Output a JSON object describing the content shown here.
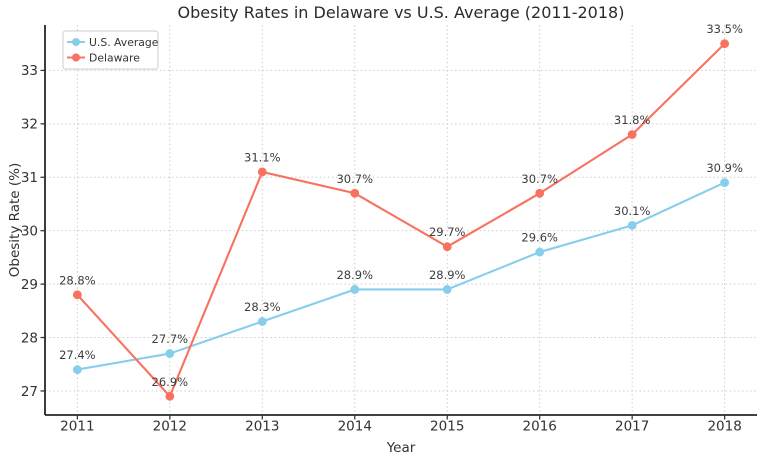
{
  "chart_data": {
    "type": "line",
    "title": "Obesity Rates in Delaware vs U.S. Average (2011-2018)",
    "xlabel": "Year",
    "ylabel": "Obesity Rate (%)",
    "categories": [
      2011,
      2012,
      2013,
      2014,
      2015,
      2016,
      2017,
      2018
    ],
    "series": [
      {
        "name": "U.S. Average",
        "color": "#87CEEB",
        "marker": "circle",
        "values": [
          27.4,
          27.7,
          28.3,
          28.9,
          28.9,
          29.6,
          30.1,
          30.9
        ],
        "point_labels": [
          "27.4%",
          "27.7%",
          "28.3%",
          "28.9%",
          "28.9%",
          "29.6%",
          "30.1%",
          "30.9%"
        ]
      },
      {
        "name": "Delaware",
        "color": "#F9715F",
        "marker": "circle",
        "values": [
          28.8,
          26.9,
          31.1,
          30.7,
          29.7,
          30.7,
          31.8,
          33.5
        ],
        "point_labels": [
          "28.8%",
          "26.9%",
          "31.1%",
          "30.7%",
          "29.7%",
          "30.7%",
          "31.8%",
          "33.5%"
        ]
      }
    ],
    "xticks": [
      2011,
      2012,
      2013,
      2014,
      2015,
      2016,
      2017,
      2018
    ],
    "yticks": [
      27,
      28,
      29,
      30,
      31,
      32,
      33
    ],
    "xlim": [
      2010.65,
      2018.35
    ],
    "ylim": [
      26.55,
      33.85
    ],
    "grid": true,
    "grid_style": "dotted",
    "legend": {
      "position": "upper left",
      "entries": [
        "U.S. Average",
        "Delaware"
      ]
    },
    "colors": {
      "grid": "#cccccc",
      "spine": "#262626",
      "tick": "#333333",
      "tick_label": "#333333",
      "point_label": "#3d3d3d",
      "title": "#2b2b2b",
      "legend_border": "#cccccc",
      "background": "#ffffff"
    }
  }
}
